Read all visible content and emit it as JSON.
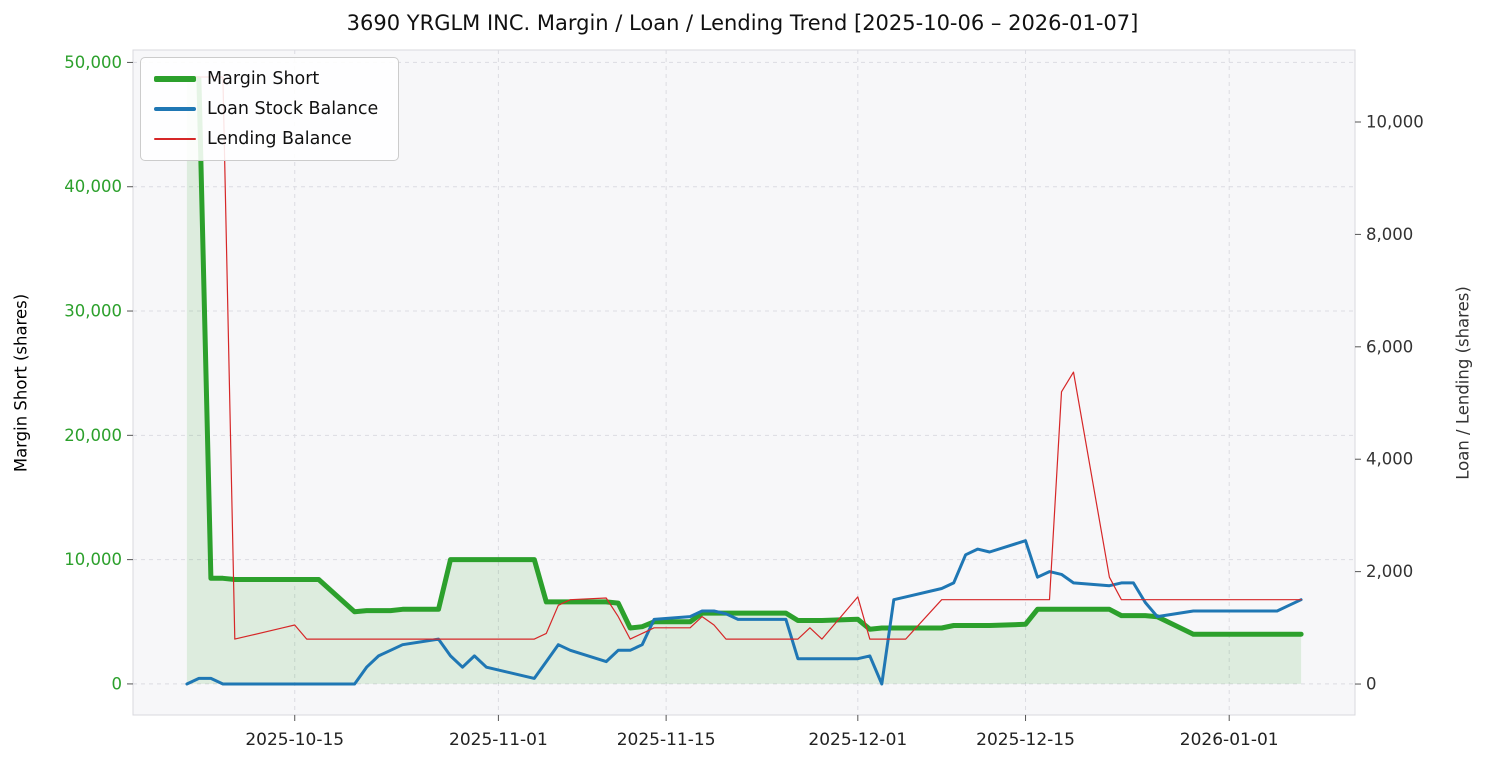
{
  "chart_data": {
    "type": "line",
    "title": "3690 YRGLM INC. Margin / Loan / Lending Trend [2025-10-06 – 2026-01-07]",
    "x_start": "2025-10-06",
    "x_end": "2026-01-07",
    "xlim_days": [
      -4.5,
      97.5
    ],
    "grid": true,
    "legend_position": "upper-left",
    "left_axis": {
      "label": "Margin Short (shares)",
      "color": "#2ca02c",
      "ticks": [
        0,
        10000,
        20000,
        30000,
        40000,
        50000
      ],
      "lim": [
        -2500,
        51000
      ]
    },
    "right_axis": {
      "label": "Loan / Lending (shares)",
      "color": "#333333",
      "ticks": [
        0,
        2000,
        4000,
        6000,
        8000,
        10000
      ],
      "lim": [
        -551,
        11281
      ]
    },
    "x_ticks": [
      "2025-10-15",
      "2025-11-01",
      "2025-11-15",
      "2025-12-01",
      "2025-12-15",
      "2026-01-01"
    ],
    "dates": [
      "2025-10-06",
      "2025-10-07",
      "2025-10-08",
      "2025-10-09",
      "2025-10-10",
      "2025-10-14",
      "2025-10-15",
      "2025-10-16",
      "2025-10-17",
      "2025-10-20",
      "2025-10-21",
      "2025-10-22",
      "2025-10-23",
      "2025-10-24",
      "2025-10-27",
      "2025-10-28",
      "2025-10-29",
      "2025-10-30",
      "2025-10-31",
      "2025-11-04",
      "2025-11-05",
      "2025-11-06",
      "2025-11-07",
      "2025-11-10",
      "2025-11-11",
      "2025-11-12",
      "2025-11-13",
      "2025-11-14",
      "2025-11-17",
      "2025-11-18",
      "2025-11-19",
      "2025-11-20",
      "2025-11-21",
      "2025-11-25",
      "2025-11-26",
      "2025-11-27",
      "2025-11-28",
      "2025-12-01",
      "2025-12-02",
      "2025-12-03",
      "2025-12-04",
      "2025-12-05",
      "2025-12-08",
      "2025-12-09",
      "2025-12-10",
      "2025-12-11",
      "2025-12-12",
      "2025-12-15",
      "2025-12-16",
      "2025-12-17",
      "2025-12-18",
      "2025-12-19",
      "2025-12-22",
      "2025-12-23",
      "2025-12-24",
      "2025-12-25",
      "2025-12-26",
      "2025-12-29",
      "2025-12-30",
      "2026-01-05",
      "2026-01-06",
      "2026-01-07"
    ],
    "series": [
      {
        "name": "Margin Short",
        "axis": "left",
        "color": "#2ca02c",
        "line_width": 5,
        "fill_under": true,
        "fill_opacity": 0.13,
        "values": [
          48700,
          48700,
          8500,
          8500,
          8400,
          8400,
          8400,
          8400,
          8400,
          5800,
          5900,
          5900,
          5900,
          6000,
          6000,
          10000,
          10000,
          10000,
          10000,
          10000,
          6600,
          6600,
          6600,
          6600,
          6500,
          4500,
          4600,
          5000,
          5000,
          5700,
          5700,
          5700,
          5700,
          5700,
          5100,
          5100,
          5100,
          5200,
          4400,
          4500,
          4500,
          4500,
          4500,
          4700,
          4700,
          4700,
          4700,
          4800,
          6000,
          6000,
          6000,
          6000,
          6000,
          5500,
          5500,
          5500,
          5400,
          4000,
          4000,
          4000,
          4000,
          4000
        ]
      },
      {
        "name": "Loan Stock Balance",
        "axis": "right",
        "color": "#1f77b4",
        "line_width": 3,
        "fill_under": false,
        "values": [
          0,
          100,
          100,
          0,
          0,
          0,
          0,
          0,
          0,
          0,
          300,
          500,
          600,
          700,
          800,
          500,
          300,
          500,
          300,
          100,
          400,
          700,
          600,
          400,
          600,
          600,
          700,
          1150,
          1200,
          1300,
          1300,
          1250,
          1150,
          1150,
          450,
          450,
          450,
          450,
          500,
          0,
          1500,
          1550,
          1700,
          1800,
          2300,
          2400,
          2350,
          2550,
          1900,
          2000,
          1950,
          1800,
          1750,
          1800,
          1800,
          1450,
          1200,
          1300,
          1300,
          1300,
          1400,
          1500
        ]
      },
      {
        "name": "Lending Balance",
        "axis": "right",
        "color": "#d62728",
        "line_width": 1.2,
        "fill_under": false,
        "values": [
          10800,
          10800,
          10800,
          10800,
          800,
          1000,
          1050,
          800,
          800,
          800,
          800,
          800,
          800,
          800,
          800,
          800,
          800,
          800,
          800,
          800,
          900,
          1400,
          1500,
          1530,
          1200,
          800,
          900,
          1000,
          1000,
          1200,
          1050,
          800,
          800,
          800,
          800,
          1000,
          800,
          1550,
          800,
          800,
          800,
          800,
          1500,
          1500,
          1500,
          1500,
          1500,
          1500,
          1500,
          1500,
          5200,
          5550,
          1900,
          1500,
          1500,
          1500,
          1500,
          1500,
          1500,
          1500,
          1500,
          1500
        ]
      }
    ]
  }
}
